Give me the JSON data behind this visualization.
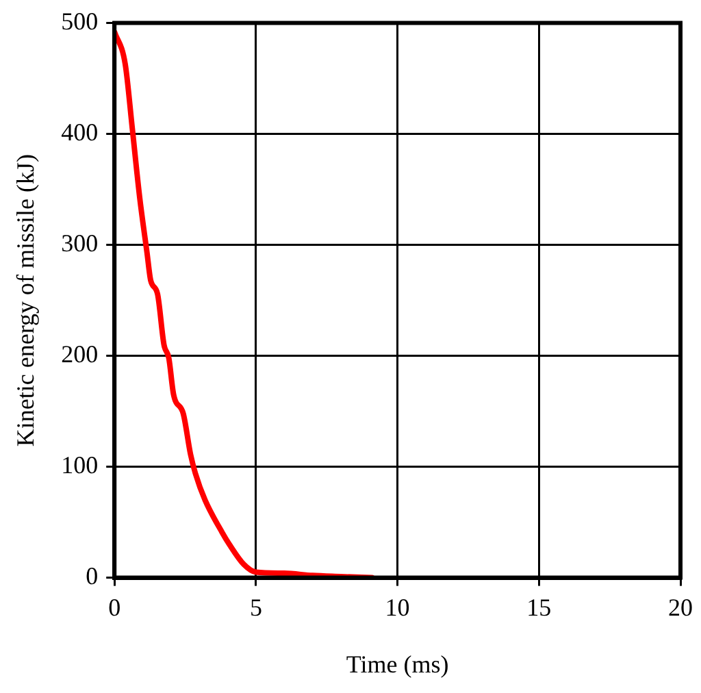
{
  "chart_data": {
    "type": "line",
    "xlabel": "Time (ms)",
    "ylabel": "Kinetic energy of missile (kJ)",
    "xlim": [
      0,
      20
    ],
    "xticks": [
      0,
      5,
      10,
      15,
      20
    ],
    "ylim": [
      0,
      500
    ],
    "yticks": [
      0,
      100,
      200,
      300,
      400,
      500
    ],
    "grid": true,
    "legend": false,
    "marker": "none",
    "line_style": "solid",
    "series": [
      {
        "color": "#ff0000",
        "x": [
          0,
          0.38,
          0.63,
          0.89,
          1.15,
          1.28,
          1.52,
          1.75,
          1.92,
          2.09,
          2.43,
          2.69,
          2.86,
          3.2,
          3.8,
          4.06,
          4.57,
          5,
          6,
          7,
          8,
          9.1
        ],
        "values": [
          492,
          463,
          405,
          343,
          293,
          268,
          256,
          210,
          198,
          165,
          148,
          111,
          94,
          70,
          41,
          30,
          12,
          5,
          4,
          2,
          1,
          0
        ]
      }
    ]
  }
}
